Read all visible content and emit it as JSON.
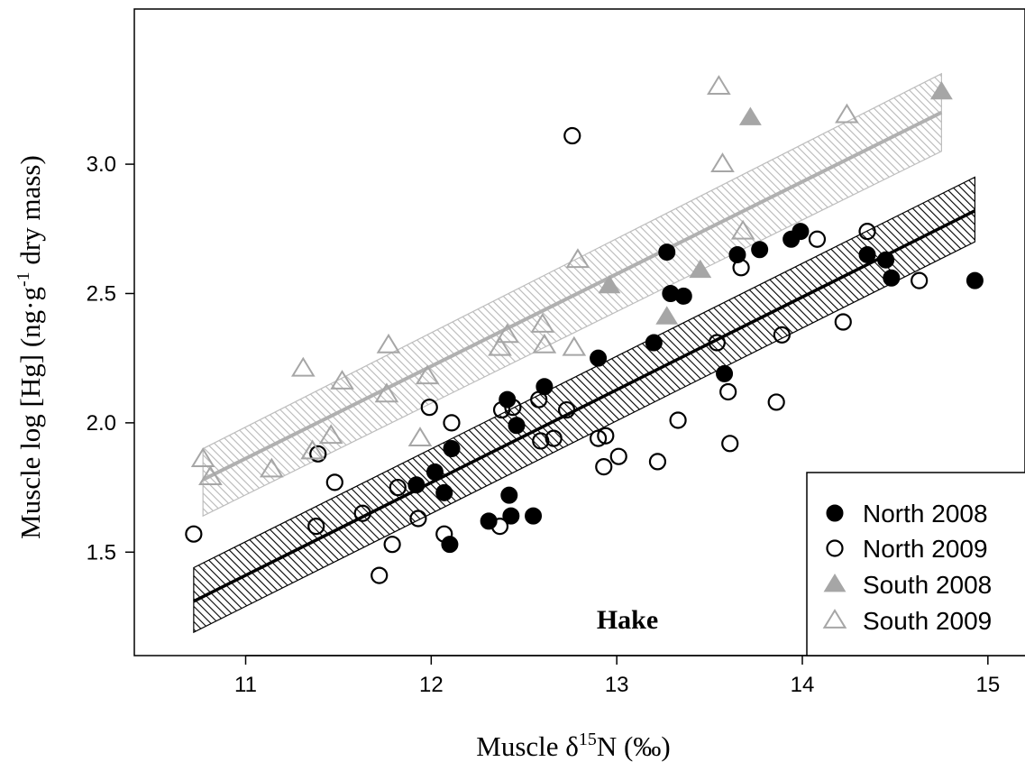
{
  "chart_data": {
    "type": "scatter",
    "annotation": "Hake",
    "xlabel": "Muscle δ15N (‰)",
    "xlabel_parts": {
      "pre": "Muscle δ",
      "sup": "15",
      "post": "N (‰)"
    },
    "ylabel": "Muscle log [Hg] (ng·g-1 dry mass)",
    "ylabel_parts": {
      "pre": "Muscle log [Hg] (ng·g",
      "sup": "-1",
      "post": " dry mass)"
    },
    "xlim": [
      10.4,
      15.2
    ],
    "ylim": [
      1.1,
      3.6
    ],
    "x_ticks": [
      11,
      12,
      13,
      14,
      15
    ],
    "x_tick_labels": [
      "11",
      "12",
      "13",
      "14",
      "15"
    ],
    "y_ticks": [
      1.5,
      2.0,
      2.5,
      3.0
    ],
    "y_tick_labels": [
      "1.5",
      "2.0",
      "2.5",
      "3.0"
    ],
    "grid": false,
    "legend_position": "bottom-right",
    "series": [
      {
        "name": "North 2008",
        "marker": "circle-filled",
        "color": "#000000",
        "points": [
          [
            11.92,
            1.76
          ],
          [
            12.02,
            1.81
          ],
          [
            12.07,
            1.73
          ],
          [
            12.1,
            1.53
          ],
          [
            12.11,
            1.9
          ],
          [
            12.31,
            1.62
          ],
          [
            12.41,
            2.09
          ],
          [
            12.42,
            1.72
          ],
          [
            12.43,
            1.64
          ],
          [
            12.46,
            1.99
          ],
          [
            12.55,
            1.64
          ],
          [
            12.61,
            2.14
          ],
          [
            12.9,
            2.25
          ],
          [
            13.2,
            2.31
          ],
          [
            13.27,
            2.66
          ],
          [
            13.29,
            2.5
          ],
          [
            13.36,
            2.49
          ],
          [
            13.58,
            2.19
          ],
          [
            13.65,
            2.65
          ],
          [
            13.77,
            2.67
          ],
          [
            13.94,
            2.71
          ],
          [
            13.99,
            2.74
          ],
          [
            14.35,
            2.65
          ],
          [
            14.45,
            2.63
          ],
          [
            14.48,
            2.56
          ],
          [
            14.93,
            2.55
          ]
        ]
      },
      {
        "name": "North 2009",
        "marker": "circle-open",
        "color": "#000000",
        "points": [
          [
            10.72,
            1.57
          ],
          [
            11.38,
            1.6
          ],
          [
            11.39,
            1.88
          ],
          [
            11.48,
            1.77
          ],
          [
            11.63,
            1.65
          ],
          [
            11.72,
            1.41
          ],
          [
            11.79,
            1.53
          ],
          [
            11.82,
            1.75
          ],
          [
            11.93,
            1.63
          ],
          [
            11.99,
            2.06
          ],
          [
            12.07,
            1.57
          ],
          [
            12.11,
            2.0
          ],
          [
            12.37,
            1.6
          ],
          [
            12.38,
            2.05
          ],
          [
            12.44,
            2.06
          ],
          [
            12.58,
            2.09
          ],
          [
            12.59,
            1.93
          ],
          [
            12.66,
            1.94
          ],
          [
            12.73,
            2.05
          ],
          [
            12.76,
            3.11
          ],
          [
            12.9,
            1.94
          ],
          [
            12.93,
            1.83
          ],
          [
            12.94,
            1.95
          ],
          [
            13.01,
            1.87
          ],
          [
            13.22,
            1.85
          ],
          [
            13.33,
            2.01
          ],
          [
            13.54,
            2.31
          ],
          [
            13.6,
            2.12
          ],
          [
            13.61,
            1.92
          ],
          [
            13.67,
            2.6
          ],
          [
            13.86,
            2.08
          ],
          [
            13.89,
            2.34
          ],
          [
            14.08,
            2.71
          ],
          [
            14.22,
            2.39
          ],
          [
            14.35,
            2.74
          ],
          [
            14.63,
            2.55
          ]
        ]
      },
      {
        "name": "South 2008",
        "marker": "triangle-filled",
        "color": "#a6a6a6",
        "points": [
          [
            12.96,
            2.53
          ],
          [
            13.27,
            2.41
          ],
          [
            13.45,
            2.59
          ],
          [
            13.72,
            3.18
          ],
          [
            14.75,
            3.28
          ]
        ]
      },
      {
        "name": "South 2009",
        "marker": "triangle-open",
        "color": "#a6a6a6",
        "points": [
          [
            10.77,
            1.86
          ],
          [
            10.81,
            1.79
          ],
          [
            11.14,
            1.82
          ],
          [
            11.31,
            2.21
          ],
          [
            11.36,
            1.89
          ],
          [
            11.46,
            1.95
          ],
          [
            11.52,
            2.16
          ],
          [
            11.76,
            2.11
          ],
          [
            11.77,
            2.3
          ],
          [
            11.94,
            1.94
          ],
          [
            11.98,
            2.18
          ],
          [
            12.37,
            2.29
          ],
          [
            12.41,
            2.34
          ],
          [
            12.6,
            2.38
          ],
          [
            12.61,
            2.3
          ],
          [
            12.77,
            2.29
          ],
          [
            12.79,
            2.63
          ],
          [
            13.55,
            3.3
          ],
          [
            13.57,
            3.0
          ],
          [
            13.68,
            2.74
          ],
          [
            14.24,
            3.19
          ]
        ]
      }
    ],
    "fits": [
      {
        "color": "#000000",
        "x": [
          10.72,
          14.93
        ],
        "y": [
          1.31,
          2.82
        ],
        "band_x": [
          10.72,
          14.93
        ],
        "band_upper": [
          1.44,
          2.95
        ],
        "band_lower": [
          1.19,
          2.7
        ]
      },
      {
        "color": "#b0b0b0",
        "x": [
          10.77,
          14.75
        ],
        "y": [
          1.78,
          3.2
        ],
        "band_x": [
          10.77,
          14.75
        ],
        "band_upper": [
          1.9,
          3.35
        ],
        "band_lower": [
          1.64,
          3.05
        ]
      }
    ]
  }
}
